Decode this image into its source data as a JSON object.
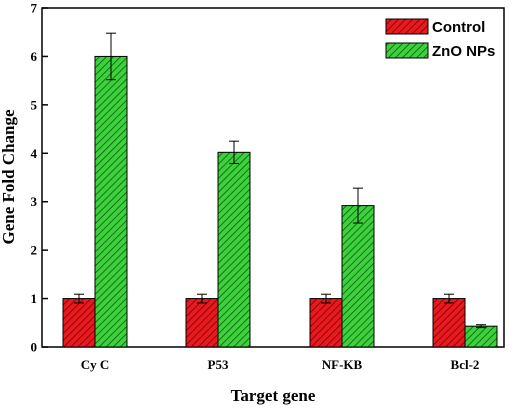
{
  "chart_data": {
    "type": "bar",
    "title": "",
    "xlabel": "Target gene",
    "ylabel": "Gene Fold Change",
    "categories": [
      "Cy C",
      "P53",
      "NF-KB",
      "Bcl-2"
    ],
    "ylim": [
      0,
      7
    ],
    "yticks": [
      "0",
      "1",
      "2",
      "3",
      "4",
      "5",
      "6",
      "7"
    ],
    "legend_position": "top-right",
    "grid": false,
    "series": [
      {
        "name": "Control",
        "color": "#e8191f",
        "pattern": "diagonal-hatch",
        "values": [
          1.0,
          1.0,
          1.0,
          1.0
        ],
        "errors": [
          0.09,
          0.09,
          0.09,
          0.09
        ]
      },
      {
        "name": "ZnO NPs",
        "color": "#3dd13d",
        "pattern": "diagonal-hatch",
        "values": [
          6.0,
          4.02,
          2.92,
          0.43
        ],
        "errors": [
          0.48,
          0.23,
          0.36,
          0.03
        ]
      }
    ]
  }
}
